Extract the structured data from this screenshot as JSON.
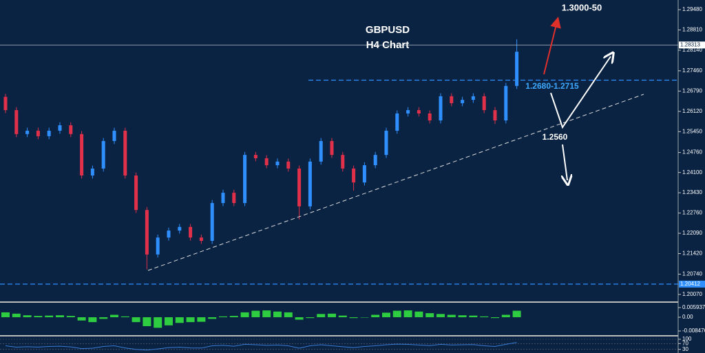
{
  "chart_data": [
    {
      "type": "candlestick",
      "title": "GBPUSD",
      "subtitle": "H4 Chart",
      "annotations": [
        "1.3000-50",
        "1.2680-1.2715",
        "1.2560"
      ],
      "up_color": "#2f8fff",
      "down_color": "#e0304a",
      "open": [
        1.266,
        1.2616,
        1.2537,
        1.2548,
        1.253,
        1.2548,
        1.2566,
        1.2537,
        1.24,
        1.2423,
        1.2514,
        1.2548,
        1.24,
        1.2286,
        1.2139,
        1.2195,
        1.2218,
        1.223,
        1.2195,
        1.2184,
        1.2309,
        1.2343,
        1.2309,
        1.2468,
        1.2457,
        1.2434,
        1.2446,
        1.2423,
        1.2298,
        1.2446,
        1.2514,
        1.2468,
        1.2423,
        1.2377,
        1.2434,
        1.2468,
        1.2548,
        1.2605,
        1.2616,
        1.2605,
        1.2582,
        1.2662,
        1.2639,
        1.265,
        1.2662,
        1.2616,
        1.2582,
        1.2696
      ],
      "high": [
        1.267,
        1.2626,
        1.2558,
        1.2558,
        1.2558,
        1.2576,
        1.2576,
        1.2547,
        1.2433,
        1.2524,
        1.2558,
        1.2558,
        1.241,
        1.2296,
        1.2205,
        1.2228,
        1.224,
        1.224,
        1.2205,
        1.2319,
        1.2353,
        1.2353,
        1.2478,
        1.2478,
        1.2467,
        1.2456,
        1.2456,
        1.2433,
        1.2456,
        1.2524,
        1.2524,
        1.2478,
        1.2433,
        1.2444,
        1.2478,
        1.2558,
        1.2615,
        1.2626,
        1.2626,
        1.2615,
        1.2672,
        1.2672,
        1.266,
        1.2672,
        1.2672,
        1.2626,
        1.2706,
        1.285
      ],
      "low": [
        1.2606,
        1.2527,
        1.2527,
        1.252,
        1.252,
        1.2538,
        1.2527,
        1.239,
        1.239,
        1.2413,
        1.2504,
        1.239,
        1.2276,
        1.209,
        1.2129,
        1.2185,
        1.2208,
        1.2185,
        1.2174,
        1.2174,
        1.2299,
        1.2299,
        1.2299,
        1.2447,
        1.2424,
        1.2424,
        1.2413,
        1.2255,
        1.2288,
        1.2436,
        1.2458,
        1.2413,
        1.235,
        1.2367,
        1.2424,
        1.2458,
        1.2538,
        1.2595,
        1.2595,
        1.2572,
        1.2572,
        1.2629,
        1.2629,
        1.264,
        1.2606,
        1.257,
        1.2572,
        1.2686
      ],
      "close": [
        1.2616,
        1.2537,
        1.2548,
        1.253,
        1.2548,
        1.2566,
        1.2537,
        1.24,
        1.2423,
        1.2514,
        1.2548,
        1.24,
        1.2286,
        1.2139,
        1.2195,
        1.2218,
        1.223,
        1.2195,
        1.2184,
        1.2309,
        1.2343,
        1.2309,
        1.2468,
        1.2457,
        1.2434,
        1.2446,
        1.2423,
        1.2298,
        1.2446,
        1.2514,
        1.2468,
        1.2423,
        1.2377,
        1.2434,
        1.2468,
        1.2548,
        1.2605,
        1.2616,
        1.2605,
        1.2582,
        1.2662,
        1.2639,
        1.265,
        1.2662,
        1.2616,
        1.2582,
        1.2696,
        1.2809
      ],
      "ylim": [
        1.1984,
        1.298
      ],
      "yticks": [
        {
          "value": 1.2948,
          "label": "1.29480"
        },
        {
          "value": 1.2881,
          "label": "1.28810"
        },
        {
          "value": 1.2814,
          "label": "1.28140"
        },
        {
          "value": 1.2746,
          "label": "1.27460"
        },
        {
          "value": 1.2679,
          "label": "1.26790"
        },
        {
          "value": 1.2612,
          "label": "1.26120"
        },
        {
          "value": 1.2545,
          "label": "1.25450"
        },
        {
          "value": 1.2476,
          "label": "1.24760"
        },
        {
          "value": 1.241,
          "label": "1.24100"
        },
        {
          "value": 1.2343,
          "label": "1.23430"
        },
        {
          "value": 1.2276,
          "label": "1.22760"
        },
        {
          "value": 1.2209,
          "label": "1.22090"
        },
        {
          "value": 1.2142,
          "label": "1.21420"
        },
        {
          "value": 1.2074,
          "label": "1.20740"
        },
        {
          "value": 1.2007,
          "label": "1.20070"
        }
      ],
      "current_price": 1.28313,
      "support_level": 1.20412,
      "resistance_level": 1.2715
    },
    {
      "type": "bar",
      "color": "#2ecc40",
      "values": [
        0.003,
        0.0022,
        0.0012,
        0.0008,
        0.001,
        0.0012,
        0.0008,
        -0.002,
        -0.003,
        -0.001,
        0.0015,
        0.0005,
        -0.003,
        -0.0055,
        -0.0065,
        -0.005,
        -0.0035,
        -0.003,
        -0.0028,
        -0.001,
        0.0005,
        0.0008,
        0.003,
        0.004,
        0.0042,
        0.0035,
        0.003,
        -0.0015,
        -0.0005,
        0.002,
        0.0022,
        0.001,
        -0.0005,
        0.0,
        0.0015,
        0.0028,
        0.004,
        0.0042,
        0.0035,
        0.0025,
        0.002,
        0.0015,
        0.0012,
        0.001,
        0.0005,
        -0.0005,
        0.0015,
        0.004
      ],
      "ylim": [
        -0.011,
        0.0089
      ],
      "yticks": [
        0.005937,
        {
          "value": 0,
          "label": "0.00"
        },
        -0.008476
      ]
    },
    {
      "type": "line",
      "color": "#3a7bd5",
      "values": [
        55,
        45,
        48,
        46,
        50,
        52,
        47,
        35,
        38,
        50,
        55,
        40,
        30,
        25,
        33,
        42,
        45,
        40,
        39,
        55,
        58,
        52,
        65,
        62,
        58,
        60,
        55,
        38,
        55,
        62,
        55,
        48,
        42,
        50,
        55,
        62,
        66,
        64,
        60,
        56,
        65,
        60,
        62,
        63,
        55,
        50,
        65,
        78
      ],
      "ylim": [
        0,
        100
      ],
      "yticks": [
        100,
        70,
        30
      ]
    }
  ]
}
